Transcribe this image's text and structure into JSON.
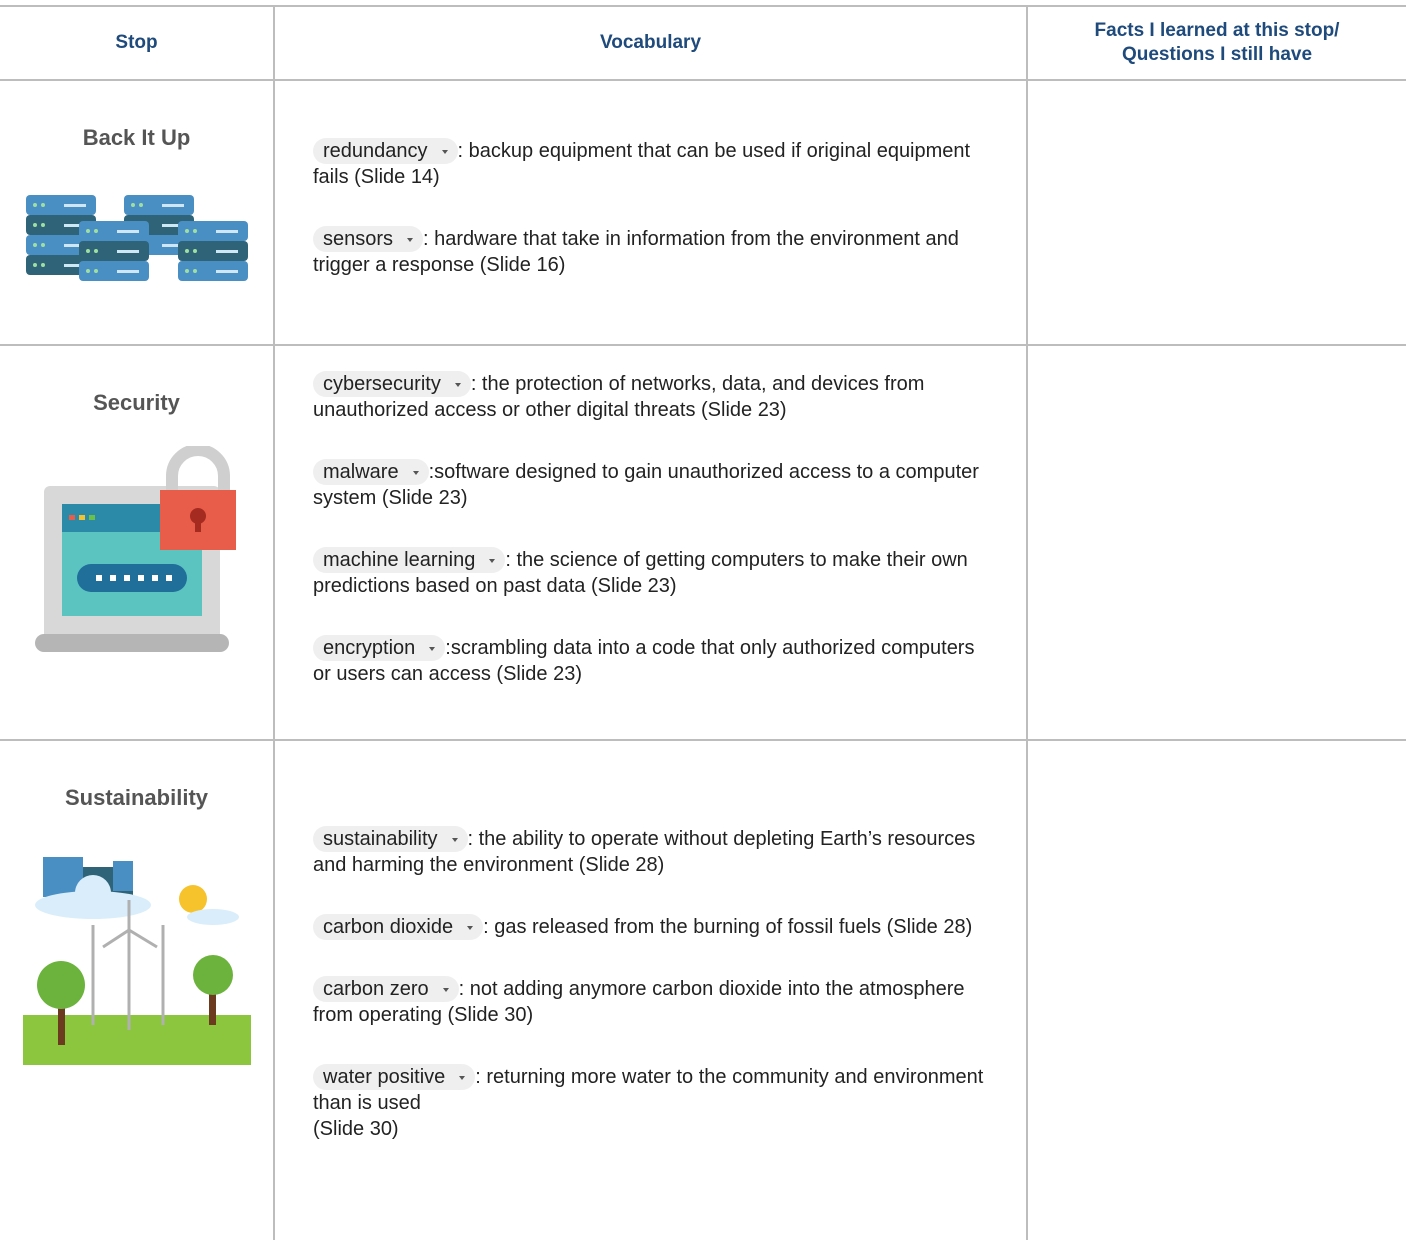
{
  "header": {
    "columns": [
      "Stop",
      "Vocabulary",
      "Facts I learned at this stop/ Questions I still have"
    ]
  },
  "rows": [
    {
      "stop": "Back It Up",
      "vocabulary": [
        {
          "term": "redundancy",
          "definition": ":  backup equipment that can be used if original equipment fails (Slide 14)"
        },
        {
          "term": "sensors",
          "definition": ": hardware that take in information from the environment and trigger a response (Slide 16)"
        }
      ]
    },
    {
      "stop": "Security",
      "vocabulary": [
        {
          "term": "cybersecurity",
          "definition": ":  the protection of networks, data, and devices from unauthorized access or other digital threats (Slide 23)"
        },
        {
          "term": "malware",
          "definition": ":software designed to gain unauthorized access to a computer system (Slide 23)"
        },
        {
          "term": "machine learning",
          "definition": ":  the science of getting computers to make their own predictions based on past data (Slide 23)"
        },
        {
          "term": "encryption",
          "definition": ":scrambling data into a code that only authorized computers or users can access (Slide 23)"
        }
      ]
    },
    {
      "stop": "Sustainability",
      "vocabulary": [
        {
          "term": "sustainability",
          "definition": ": the ability to operate without depleting Earth’s resources and harming the environment (Slide 28)"
        },
        {
          "term": "carbon dioxide",
          "definition": ": gas released from the burning of fossil fuels (Slide 28)"
        },
        {
          "term": "carbon zero",
          "definition": ": not adding anymore carbon dioxide into the atmosphere from operating (Slide 30)"
        },
        {
          "term": "water positive",
          "definition": ": returning more water to the community and environment than is used\n(Slide 30)"
        }
      ]
    }
  ]
}
